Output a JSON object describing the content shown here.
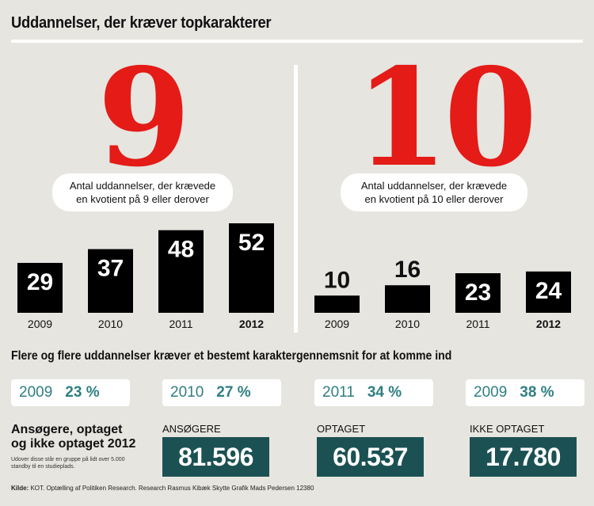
{
  "title": "Uddannelser, der kræver topkarakterer",
  "chart_data": [
    {
      "type": "bar",
      "big_number": "9",
      "subtitle_line1": "Antal uddannelser, der krævede",
      "subtitle_line2": "en kvotient på 9 eller derover",
      "categories": [
        "2009",
        "2010",
        "2011",
        "2012"
      ],
      "values": [
        29,
        37,
        48,
        52
      ],
      "bold_category": "2012",
      "ylim": [
        0,
        52
      ]
    },
    {
      "type": "bar",
      "big_number": "10",
      "subtitle_line1": "Antal uddannelser, der krævede",
      "subtitle_line2": "en kvotient på 10 eller derover",
      "categories": [
        "2009",
        "2010",
        "2011",
        "2012"
      ],
      "values": [
        10,
        16,
        23,
        24
      ],
      "bold_category": "2012",
      "ylim": [
        0,
        52
      ]
    }
  ],
  "percent_heading": "Flere og flere uddannelser kræver et bestemt karaktergennemsnit for at komme ind",
  "percent_stats": [
    {
      "year": "2009",
      "percent": "23 %"
    },
    {
      "year": "2010",
      "percent": "27 %"
    },
    {
      "year": "2011",
      "percent": "34 %"
    },
    {
      "year": "2009",
      "percent": "38 %"
    }
  ],
  "applicants": {
    "title_line1": "Ansøgere, optaget",
    "title_line2": "og ikke optaget 2012",
    "note": "Udover disse står en gruppe på lidt over 5.000 standby til en studieplads.",
    "boxes": [
      {
        "label": "ANSØGERE",
        "value": "81.596"
      },
      {
        "label": "OPTAGET",
        "value": "60.537"
      },
      {
        "label": "IKKE OPTAGET",
        "value": "17.780"
      }
    ]
  },
  "source": {
    "label": "Kilde:",
    "text": " KOT. Optælling af Politiken Research. Research Rasmus Kibæk Skytte Grafik Mads Pedersen 12380"
  },
  "colors": {
    "background": "#e6e5e0",
    "big_number": "#e41b17",
    "bar": "#000000",
    "accent_teal": "#2f7f82",
    "box_dark": "#1c5153"
  }
}
